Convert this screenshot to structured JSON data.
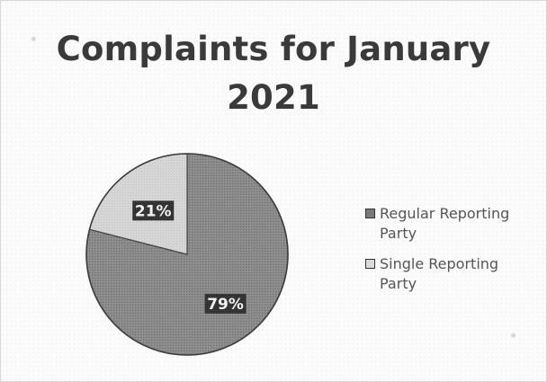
{
  "title_line1": "Complaints for January",
  "title_line2": "2021",
  "chart_data": {
    "type": "pie",
    "title": "Complaints for January 2021",
    "slices": [
      {
        "label": "Regular Reporting Party",
        "value": 79,
        "display": "79%",
        "color": "#7f7f7f"
      },
      {
        "label": "Single Reporting Party",
        "value": 21,
        "display": "21%",
        "color": "#d2d2d2"
      }
    ],
    "legend_position": "right"
  }
}
